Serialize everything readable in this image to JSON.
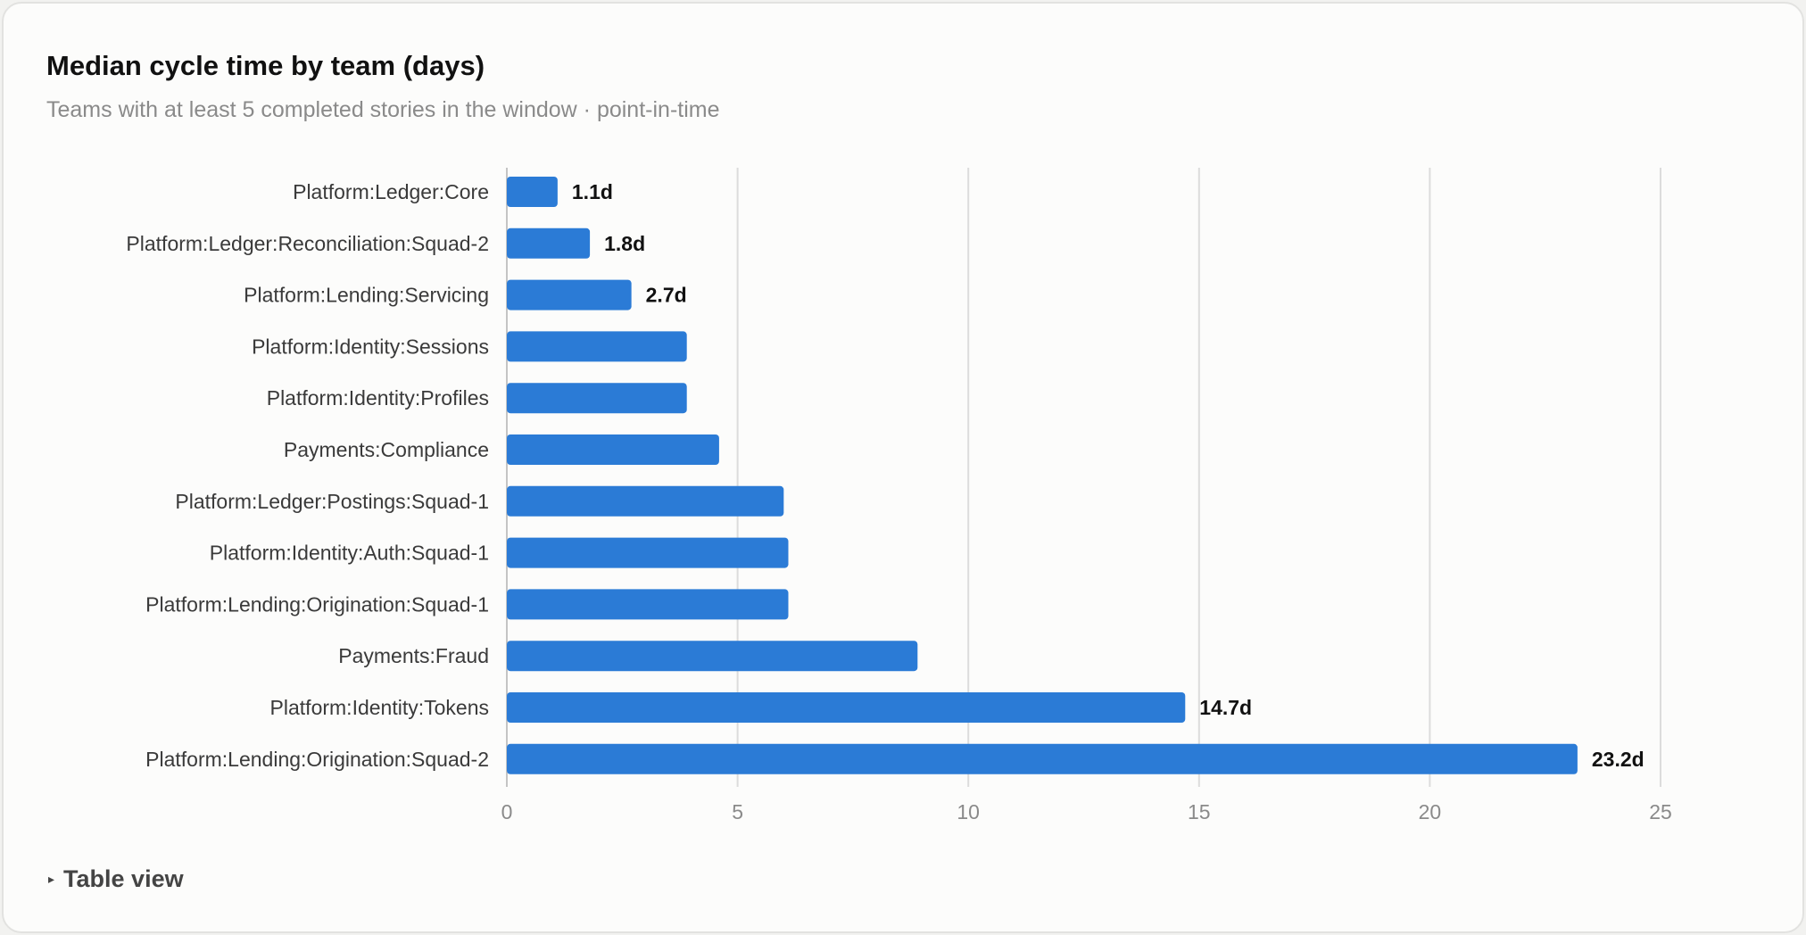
{
  "chart_data": {
    "type": "bar",
    "orientation": "horizontal",
    "title": "Median cycle time by team (days)",
    "subtitle": "Teams with at least 5 completed stories in the window · point-in-time",
    "categories": [
      "Platform:Ledger:Core",
      "Platform:Ledger:Reconciliation:Squad-2",
      "Platform:Lending:Servicing",
      "Platform:Identity:Sessions",
      "Platform:Identity:Profiles",
      "Payments:Compliance",
      "Platform:Ledger:Postings:Squad-1",
      "Platform:Identity:Auth:Squad-1",
      "Platform:Lending:Origination:Squad-1",
      "Payments:Fraud",
      "Platform:Identity:Tokens",
      "Platform:Lending:Origination:Squad-2"
    ],
    "values": [
      1.1,
      1.8,
      2.7,
      3.9,
      3.9,
      4.6,
      6.0,
      6.1,
      6.1,
      8.9,
      14.7,
      23.2
    ],
    "data_labels": [
      "1.1d",
      "1.8d",
      "2.7d",
      "",
      "",
      "",
      "",
      "",
      "",
      "",
      "14.7d",
      "23.2d"
    ],
    "xlim": [
      0,
      25
    ],
    "xticks": [
      0,
      5,
      10,
      15,
      20,
      25
    ],
    "xlabel": "",
    "ylabel": "",
    "grid": "vertical",
    "bar_color": "#2b7bd6"
  },
  "footer": {
    "table_toggle_label": "Table view"
  }
}
